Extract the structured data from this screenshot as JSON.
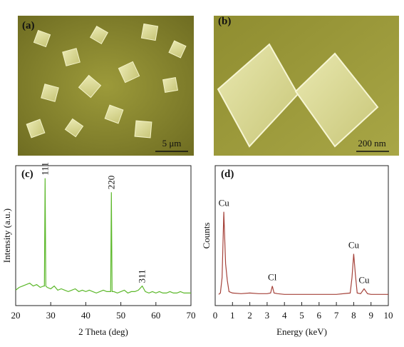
{
  "images": [
    {
      "label": "(a)",
      "scale_bar": "5 μm"
    },
    {
      "label": "(b)",
      "scale_bar": "200 nm"
    }
  ],
  "chart_data": [
    {
      "type": "line",
      "label": "(c)",
      "xlabel": "2 Theta (deg)",
      "ylabel": "Intensity (a.u.)",
      "xlim": [
        20,
        70
      ],
      "xticks": [
        20,
        30,
        40,
        50,
        60,
        70
      ],
      "ylim": [
        0,
        100
      ],
      "color": "#5cb82a",
      "x": [
        20,
        21,
        22,
        23,
        24,
        25,
        26,
        27,
        28,
        28.2,
        28.4,
        28.6,
        29,
        30,
        31,
        32,
        33,
        34,
        35,
        36,
        37,
        38,
        39,
        40,
        41,
        42,
        43,
        44,
        45,
        46,
        47.1,
        47.3,
        47.5,
        48,
        49,
        50,
        51,
        52,
        53,
        54,
        55,
        56.1,
        57,
        58,
        59,
        60,
        61,
        62,
        63,
        64,
        65,
        66,
        67,
        68,
        69,
        70
      ],
      "values": [
        11,
        13,
        14,
        15,
        16,
        14,
        15,
        13,
        14,
        14,
        91,
        14,
        13,
        12,
        14,
        11,
        12,
        11,
        10,
        11,
        12,
        10,
        11,
        10,
        11,
        10,
        9,
        10,
        11,
        10,
        10,
        81,
        10,
        10,
        9,
        10,
        11,
        9,
        10,
        10,
        11,
        14,
        10,
        9,
        10,
        9,
        10,
        9,
        9,
        10,
        9,
        9,
        10,
        9,
        9,
        9
      ],
      "annotations": [
        {
          "text": "111",
          "x": 28.4
        },
        {
          "text": "220",
          "x": 47.3
        },
        {
          "text": "311",
          "x": 56.1
        }
      ]
    },
    {
      "type": "line",
      "label": "(d)",
      "xlabel": "Energy (keV)",
      "ylabel": "Counts",
      "xlim": [
        0,
        10
      ],
      "xticks": [
        0,
        1,
        2,
        3,
        4,
        5,
        6,
        7,
        8,
        9,
        10
      ],
      "ylim": [
        0,
        100
      ],
      "color": "#a5423a",
      "x": [
        0.2,
        0.3,
        0.4,
        0.5,
        0.6,
        0.7,
        0.8,
        1,
        1.5,
        2,
        2.5,
        3,
        3.2,
        3.3,
        3.4,
        3.6,
        4,
        5,
        6,
        7,
        7.8,
        7.9,
        8,
        8.1,
        8.2,
        8.4,
        8.6,
        8.8,
        9,
        10
      ],
      "values": [
        8,
        9,
        20,
        67,
        30,
        18,
        10,
        9,
        8.5,
        9,
        8.5,
        8.5,
        9,
        14,
        9,
        8.5,
        8,
        8,
        8,
        8,
        9,
        20,
        37,
        22,
        9,
        8.5,
        12,
        8.5,
        8,
        8
      ],
      "annotations": [
        {
          "text": "Cu",
          "x": 0.5
        },
        {
          "text": "Cl",
          "x": 3.3
        },
        {
          "text": "Cu",
          "x": 8
        },
        {
          "text": "Cu",
          "x": 8.6
        }
      ]
    }
  ]
}
